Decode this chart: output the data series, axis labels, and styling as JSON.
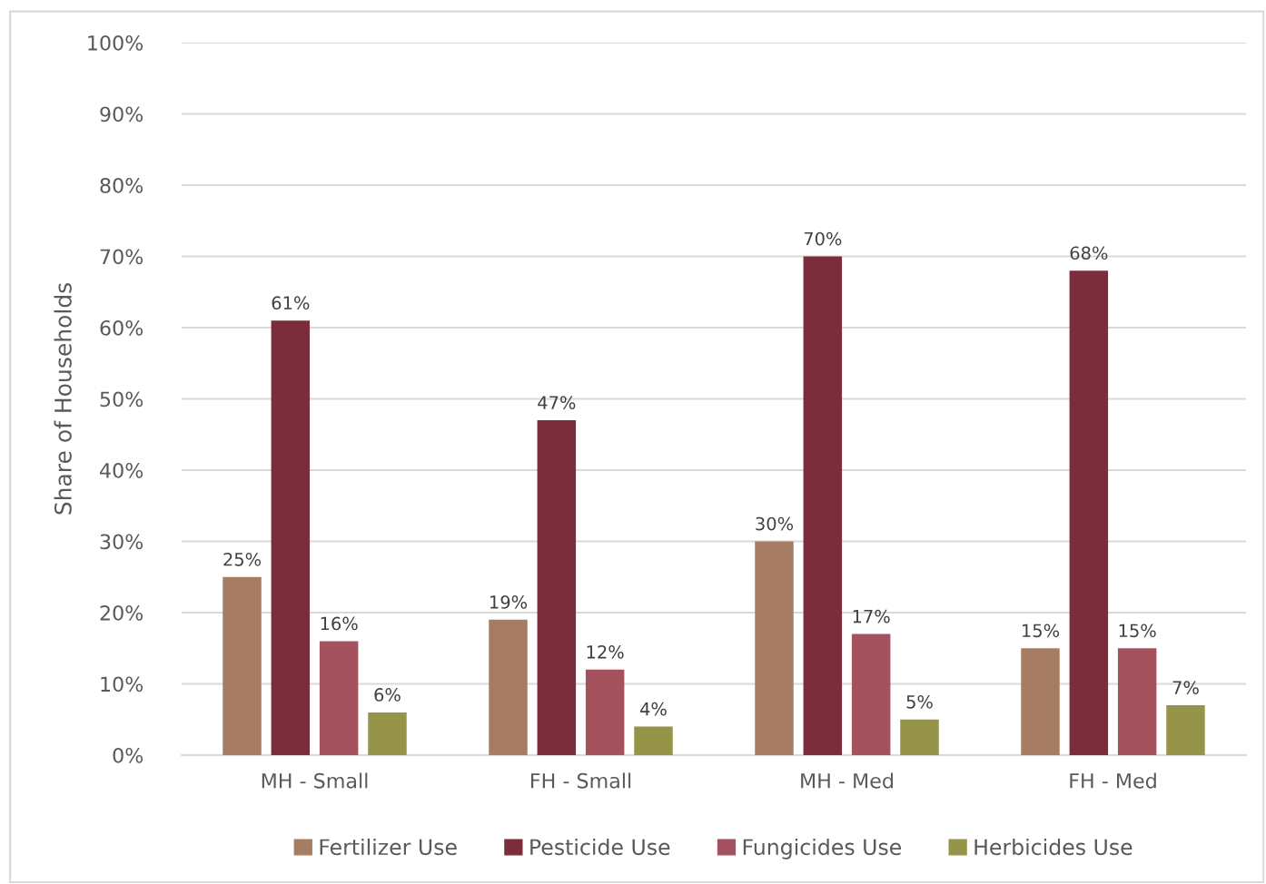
{
  "chart_data": {
    "type": "bar",
    "ylabel": "Share of Households",
    "categories": [
      "MH - Small",
      "FH - Small",
      "MH - Med",
      "FH - Med"
    ],
    "series": [
      {
        "name": "Fertilizer Use",
        "color": "#a67c62",
        "values": [
          25,
          19,
          30,
          15
        ],
        "value_labels": [
          "25%",
          "19%",
          "30%",
          "15%"
        ]
      },
      {
        "name": "Pesticide Use",
        "color": "#7b2d3c",
        "values": [
          61,
          47,
          70,
          68
        ],
        "value_labels": [
          "61%",
          "47%",
          "70%",
          "68%"
        ]
      },
      {
        "name": "Fungicides Use",
        "color": "#a5525f",
        "values": [
          16,
          12,
          17,
          15
        ],
        "value_labels": [
          "16%",
          "12%",
          "17%",
          "15%"
        ]
      },
      {
        "name": "Herbicides Use",
        "color": "#969449",
        "values": [
          6,
          4,
          5,
          7
        ],
        "value_labels": [
          "6%",
          "4%",
          "5%",
          "7%"
        ]
      }
    ],
    "ylim": [
      0,
      100
    ],
    "yticks": [
      {
        "value": 0,
        "label": "0%"
      },
      {
        "value": 10,
        "label": "10%"
      },
      {
        "value": 20,
        "label": "20%"
      },
      {
        "value": 30,
        "label": "30%"
      },
      {
        "value": 40,
        "label": "40%"
      },
      {
        "value": 50,
        "label": "50%"
      },
      {
        "value": 60,
        "label": "60%"
      },
      {
        "value": 70,
        "label": "70%"
      },
      {
        "value": 80,
        "label": "80%"
      },
      {
        "value": 90,
        "label": "90%"
      },
      {
        "value": 100,
        "label": "100%"
      }
    ],
    "grid": "y",
    "legend": "bottom"
  }
}
